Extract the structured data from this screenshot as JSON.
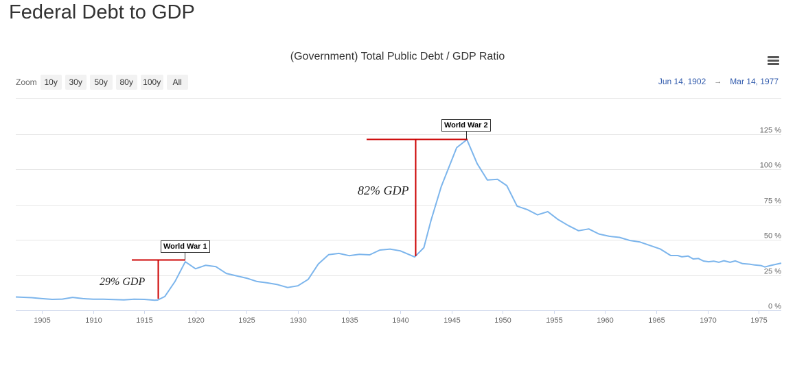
{
  "page": {
    "title": "Federal Debt to GDP"
  },
  "zoom": {
    "label": "Zoom",
    "buttons": [
      "10y",
      "30y",
      "50y",
      "80y",
      "100y",
      "All"
    ]
  },
  "range": {
    "from": "Jun 14, 1902",
    "arrow": "→",
    "to": "Mar 14, 1977"
  },
  "annotations": {
    "ww1": {
      "label": "World War 1",
      "note": "29% GDP"
    },
    "ww2": {
      "label": "World War 2",
      "note": "82% GDP"
    }
  },
  "colors": {
    "line": "#7cb5ec",
    "annotation": "#cc0000",
    "grid": "#e6e6e6",
    "axis_text": "#666666"
  },
  "chart_data": {
    "type": "line",
    "title": "(Government) Total Public Debt / GDP Ratio",
    "xlabel": "",
    "ylabel": "",
    "xlim": [
      1902.45,
      1977.2
    ],
    "ylim": [
      0,
      125
    ],
    "x_ticks": [
      "1905",
      "1910",
      "1915",
      "1920",
      "1925",
      "1930",
      "1935",
      "1940",
      "1945",
      "1950",
      "1955",
      "1960",
      "1965",
      "1970",
      "1975"
    ],
    "y_ticks": [
      "0 %",
      "25 %",
      "50 %",
      "75 %",
      "100 %",
      "125 %"
    ],
    "grid": true,
    "series": [
      {
        "x": [
          1902.45,
          1904,
          1905,
          1906,
          1907,
          1908,
          1909,
          1910,
          1911,
          1912,
          1913,
          1914,
          1915,
          1916,
          1916.3,
          1917,
          1918,
          1919,
          1920,
          1921,
          1922,
          1923,
          1924,
          1925,
          1926,
          1927,
          1928,
          1929,
          1930,
          1931,
          1932,
          1933,
          1934,
          1935,
          1936,
          1937,
          1938,
          1939,
          1940,
          1941.4,
          1942.3,
          1943,
          1944,
          1945.5,
          1946.5,
          1947.5,
          1948.5,
          1949.5,
          1950.4,
          1951.4,
          1952.4,
          1953.4,
          1954.4,
          1955.4,
          1956.4,
          1957.4,
          1958.4,
          1959.4,
          1960.4,
          1961.4,
          1962.4,
          1963.4,
          1964.4,
          1965.4,
          1966.4,
          1967.1,
          1967.5,
          1968.1,
          1968.6,
          1969.1,
          1969.6,
          1970.1,
          1970.6,
          1971.1,
          1971.6,
          1972.2,
          1972.7,
          1973.4,
          1974.1,
          1974.6,
          1975.2,
          1975.6,
          1976.2,
          1977.2
        ],
        "y": [
          9.5,
          9,
          8.3,
          7.8,
          8,
          9.2,
          8.3,
          7.9,
          7.9,
          7.7,
          7.4,
          7.9,
          7.8,
          7.2,
          7.3,
          9.8,
          20.5,
          34.5,
          29.5,
          32,
          31,
          26.2,
          24.5,
          22.8,
          20.5,
          19.5,
          18.3,
          16.2,
          17.4,
          22,
          33,
          39.5,
          40.4,
          38.8,
          39.8,
          39.4,
          42.8,
          43.5,
          42.2,
          37.9,
          44.5,
          64,
          88,
          115.5,
          121.2,
          104.2,
          92.5,
          93,
          88.5,
          74,
          71.5,
          67.8,
          70.1,
          64.5,
          60.2,
          56.5,
          57.8,
          54.2,
          52.6,
          51.8,
          49.6,
          48.5,
          46,
          43.5,
          38.9,
          38.9,
          38,
          38.5,
          36.5,
          36.8,
          35,
          34.5,
          34.9,
          34.1,
          35.2,
          34.1,
          35.1,
          33.2,
          32.8,
          32.2,
          31.8,
          30.8,
          31.9,
          33.5
        ]
      }
    ]
  }
}
